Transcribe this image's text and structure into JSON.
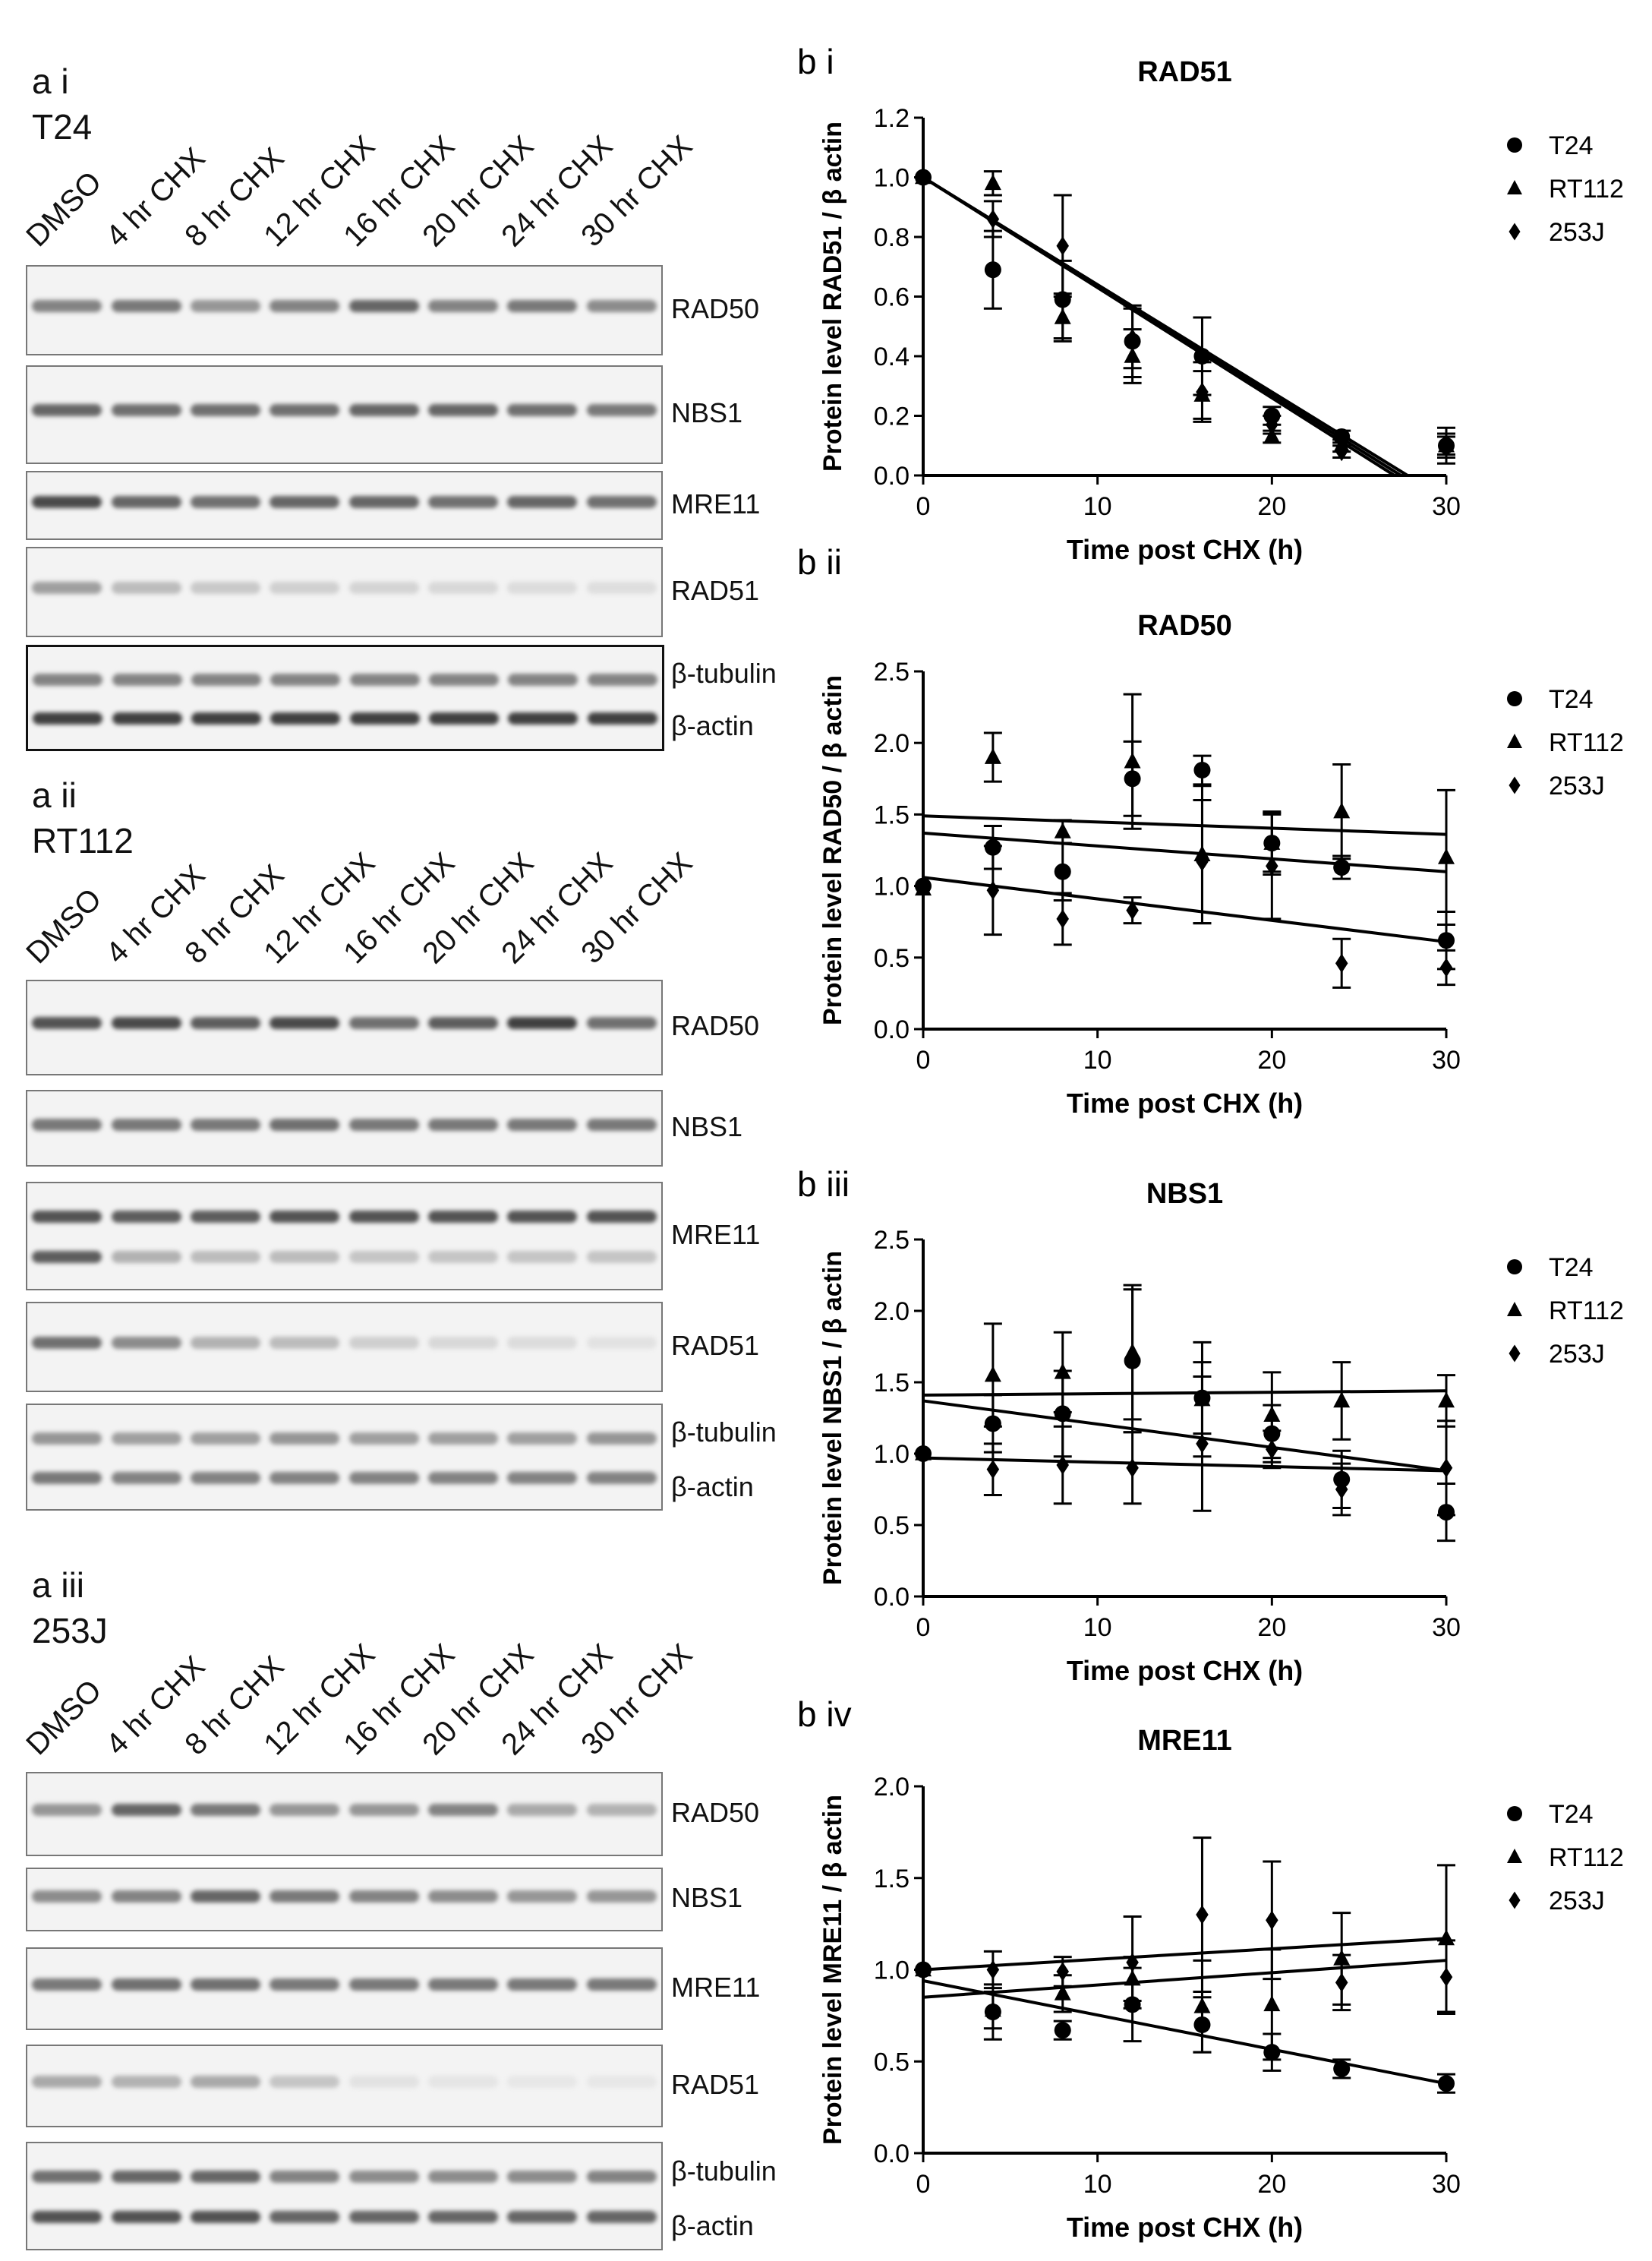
{
  "panels_a": [
    {
      "label": "a i",
      "cell_line": "T24",
      "lanes": [
        "DMSO",
        "4 hr CHX",
        "8 hr CHX",
        "12 hr CHX",
        "16 hr CHX",
        "20 hr CHX",
        "24 hr CHX",
        "30 hr CHX"
      ],
      "blots": [
        {
          "labels": [
            "RAD50"
          ],
          "bands": [
            [
              0.55,
              0.6,
              0.45,
              0.55,
              0.7,
              0.55,
              0.6,
              0.5
            ]
          ]
        },
        {
          "labels": [
            "NBS1"
          ],
          "bands": [
            [
              0.7,
              0.65,
              0.65,
              0.65,
              0.7,
              0.7,
              0.65,
              0.6
            ]
          ]
        },
        {
          "labels": [
            "MRE11"
          ],
          "bands": [
            [
              0.85,
              0.7,
              0.65,
              0.7,
              0.7,
              0.65,
              0.7,
              0.65
            ]
          ]
        },
        {
          "labels": [
            "RAD51"
          ],
          "bands": [
            [
              0.4,
              0.25,
              0.18,
              0.14,
              0.12,
              0.1,
              0.08,
              0.07
            ]
          ]
        },
        {
          "labels": [
            "β-tubulin",
            "β-actin"
          ],
          "bands": [
            [
              0.55,
              0.55,
              0.55,
              0.55,
              0.55,
              0.55,
              0.55,
              0.55
            ],
            [
              0.9,
              0.9,
              0.9,
              0.9,
              0.9,
              0.9,
              0.9,
              0.9
            ]
          ],
          "dark": true
        }
      ]
    },
    {
      "label": "a ii",
      "cell_line": "RT112",
      "lanes": [
        "DMSO",
        "4 hr CHX",
        "8 hr CHX",
        "12 hr CHX",
        "16 hr CHX",
        "20 hr CHX",
        "24 hr CHX",
        "30 hr CHX"
      ],
      "blots": [
        {
          "labels": [
            "RAD50"
          ],
          "bands": [
            [
              0.8,
              0.85,
              0.75,
              0.85,
              0.65,
              0.75,
              0.9,
              0.65
            ]
          ]
        },
        {
          "labels": [
            "NBS1"
          ],
          "bands": [
            [
              0.6,
              0.6,
              0.6,
              0.65,
              0.6,
              0.6,
              0.6,
              0.6
            ]
          ]
        },
        {
          "labels": [
            "MRE11"
          ],
          "bands": [
            [
              0.8,
              0.75,
              0.75,
              0.8,
              0.8,
              0.8,
              0.8,
              0.8
            ],
            [
              0.75,
              0.3,
              0.25,
              0.25,
              0.2,
              0.2,
              0.2,
              0.2
            ]
          ]
        },
        {
          "labels": [
            "RAD51"
          ],
          "bands": [
            [
              0.65,
              0.5,
              0.3,
              0.25,
              0.15,
              0.1,
              0.08,
              0.05
            ]
          ]
        },
        {
          "labels": [
            "β-tubulin",
            "β-actin"
          ],
          "bands": [
            [
              0.45,
              0.4,
              0.4,
              0.45,
              0.4,
              0.4,
              0.4,
              0.45
            ],
            [
              0.6,
              0.55,
              0.55,
              0.55,
              0.55,
              0.55,
              0.55,
              0.55
            ]
          ]
        }
      ]
    },
    {
      "label": "a iii",
      "cell_line": "253J",
      "lanes": [
        "DMSO",
        "4 hr CHX",
        "8 hr CHX",
        "12 hr CHX",
        "16 hr CHX",
        "20 hr CHX",
        "24 hr CHX",
        "30 hr CHX"
      ],
      "blots": [
        {
          "labels": [
            "RAD50"
          ],
          "bands": [
            [
              0.45,
              0.7,
              0.6,
              0.45,
              0.45,
              0.55,
              0.35,
              0.3
            ]
          ]
        },
        {
          "labels": [
            "NBS1"
          ],
          "bands": [
            [
              0.5,
              0.55,
              0.7,
              0.6,
              0.55,
              0.5,
              0.45,
              0.45
            ]
          ]
        },
        {
          "labels": [
            "MRE11"
          ],
          "bands": [
            [
              0.6,
              0.65,
              0.65,
              0.6,
              0.6,
              0.6,
              0.6,
              0.6
            ]
          ]
        },
        {
          "labels": [
            "RAD51"
          ],
          "bands": [
            [
              0.35,
              0.3,
              0.35,
              0.2,
              0.05,
              0.03,
              0.02,
              0.02
            ]
          ]
        },
        {
          "labels": [
            "β-tubulin",
            "β-actin"
          ],
          "bands": [
            [
              0.65,
              0.7,
              0.7,
              0.55,
              0.5,
              0.5,
              0.5,
              0.55
            ],
            [
              0.8,
              0.8,
              0.8,
              0.7,
              0.7,
              0.7,
              0.7,
              0.7
            ]
          ]
        }
      ]
    }
  ],
  "chart_data": [
    {
      "panel": "b i",
      "type": "scatter",
      "title": "RAD51",
      "xlabel": "Time post CHX (h)",
      "ylabel": "Protein level RAD51 / β actin",
      "xlim": [
        0,
        30
      ],
      "xticks": [
        0,
        10,
        20,
        30
      ],
      "ylim": [
        0,
        1.2
      ],
      "yticks": [
        0,
        0.2,
        0.4,
        0.6,
        0.8,
        1.0,
        1.2
      ],
      "ytick_decimals": 1,
      "legend": "right",
      "x": [
        0,
        4,
        8,
        12,
        16,
        20,
        24,
        30
      ],
      "series": [
        {
          "name": "T24",
          "marker": "circle",
          "values": [
            1.0,
            0.69,
            0.59,
            0.45,
            0.4,
            0.2,
            0.13,
            0.1
          ],
          "errors": [
            0,
            0.13,
            0.13,
            0.12,
            0.13,
            0.03,
            0.02,
            0.06
          ],
          "fit": [
            1.0,
            -0.037
          ]
        },
        {
          "name": "RT112",
          "marker": "triangle",
          "values": [
            1.0,
            0.98,
            0.53,
            0.4,
            0.27,
            0.13,
            0.1,
            0.1
          ],
          "errors": [
            0,
            0.04,
            0.08,
            0.09,
            0.08,
            0.02,
            0.02,
            0.03
          ],
          "fit": [
            1.0,
            -0.0365
          ]
        },
        {
          "name": "253J",
          "marker": "diamond",
          "values": [
            1.0,
            0.86,
            0.77,
            0.46,
            0.28,
            0.17,
            0.08,
            0.1
          ],
          "errors": [
            0,
            0.06,
            0.17,
            0.1,
            0.1,
            0.03,
            0.02,
            0.04
          ],
          "fit": [
            1.0,
            -0.036
          ]
        }
      ]
    },
    {
      "panel": "b ii",
      "type": "scatter",
      "title": "RAD50",
      "xlabel": "Time post CHX (h)",
      "ylabel": "Protein level RAD50 / β actin",
      "xlim": [
        0,
        30
      ],
      "xticks": [
        0,
        10,
        20,
        30
      ],
      "ylim": [
        0,
        2.5
      ],
      "yticks": [
        0,
        0.5,
        1.0,
        1.5,
        2.0,
        2.5
      ],
      "ytick_decimals": 1,
      "legend": "right",
      "x": [
        0,
        4,
        8,
        12,
        16,
        20,
        24,
        30
      ],
      "series": [
        {
          "name": "T24",
          "marker": "circle",
          "values": [
            1.0,
            1.27,
            1.1,
            1.75,
            1.81,
            1.3,
            1.13,
            0.62
          ],
          "errors": [
            0,
            0.15,
            0.2,
            0.26,
            0.1,
            0.2,
            0.08,
            0.2
          ],
          "fit": [
            1.37,
            -0.009
          ]
        },
        {
          "name": "RT112",
          "marker": "triangle",
          "values": [
            0.98,
            1.9,
            1.38,
            1.87,
            1.22,
            1.3,
            1.52,
            1.2
          ],
          "errors": [
            0,
            0.17,
            0.08,
            0.47,
            0.48,
            0.22,
            0.33,
            0.47
          ],
          "fit": [
            1.49,
            -0.0043
          ]
        },
        {
          "name": "253J",
          "marker": "diamond",
          "values": [
            1.0,
            0.97,
            0.77,
            0.83,
            1.17,
            1.14,
            0.46,
            0.43
          ],
          "errors": [
            0,
            0.31,
            0.18,
            0.09,
            0.43,
            0.37,
            0.17,
            0.12
          ],
          "fit": [
            1.06,
            -0.015
          ]
        }
      ]
    },
    {
      "panel": "b iii",
      "type": "scatter",
      "title": "NBS1",
      "xlabel": "Time post CHX (h)",
      "ylabel": "Protein level NBS1 / β actin",
      "xlim": [
        0,
        30
      ],
      "xticks": [
        0,
        10,
        20,
        30
      ],
      "ylim": [
        0,
        2.5
      ],
      "yticks": [
        0,
        0.5,
        1.0,
        1.5,
        2.0,
        2.5
      ],
      "ytick_decimals": 1,
      "legend": "right",
      "x": [
        0,
        4,
        8,
        12,
        16,
        20,
        24,
        30
      ],
      "series": [
        {
          "name": "T24",
          "marker": "circle",
          "values": [
            1.0,
            1.21,
            1.28,
            1.65,
            1.39,
            1.14,
            0.82,
            0.59
          ],
          "errors": [
            0,
            0.2,
            0.3,
            0.5,
            0.25,
            0.2,
            0.2,
            0.2
          ],
          "fit": [
            1.37,
            -0.0163
          ]
        },
        {
          "name": "RT112",
          "marker": "triangle",
          "values": [
            1.0,
            1.55,
            1.57,
            1.71,
            1.38,
            1.27,
            1.37,
            1.37
          ],
          "errors": [
            0,
            0.36,
            0.28,
            0.47,
            0.4,
            0.3,
            0.27,
            0.18
          ],
          "fit": [
            1.41,
            0.001
          ]
        },
        {
          "name": "253J",
          "marker": "diamond",
          "values": [
            1.0,
            0.89,
            0.92,
            0.9,
            1.07,
            1.03,
            0.75,
            0.9
          ],
          "errors": [
            0,
            0.18,
            0.27,
            0.25,
            0.47,
            0.13,
            0.18,
            0.33
          ],
          "fit": [
            0.97,
            -0.003
          ]
        }
      ]
    },
    {
      "panel": "b iv",
      "type": "scatter",
      "title": "MRE11",
      "xlabel": "Time post CHX (h)",
      "ylabel": "Protein level MRE11 / β actin",
      "xlim": [
        0,
        30
      ],
      "xticks": [
        0,
        10,
        20,
        30
      ],
      "ylim": [
        0,
        2.0
      ],
      "yticks": [
        0,
        0.5,
        1.0,
        1.5,
        2.0
      ],
      "ytick_decimals": 1,
      "legend": "right",
      "x": [
        0,
        4,
        8,
        12,
        16,
        20,
        24,
        30
      ],
      "series": [
        {
          "name": "T24",
          "marker": "circle",
          "values": [
            1.0,
            0.77,
            0.67,
            0.81,
            0.7,
            0.55,
            0.46,
            0.38
          ],
          "errors": [
            0,
            0.15,
            0.05,
            0.2,
            0.15,
            0.1,
            0.05,
            0.05
          ],
          "fit": [
            0.94,
            -0.0187
          ]
        },
        {
          "name": "RT112",
          "marker": "triangle",
          "values": [
            1.0,
            0.78,
            0.87,
            0.95,
            0.8,
            0.81,
            1.06,
            1.17
          ],
          "errors": [
            0,
            0.1,
            0.1,
            0.12,
            0.25,
            0.3,
            0.25,
            0.4
          ],
          "fit": [
            1.0,
            0.0057
          ]
        },
        {
          "name": "253J",
          "marker": "diamond",
          "values": [
            1.0,
            1.0,
            0.99,
            1.04,
            1.3,
            1.27,
            0.93,
            0.96
          ],
          "errors": [
            0,
            0.1,
            0.08,
            0.25,
            0.42,
            0.32,
            0.15,
            0.2
          ],
          "fit": [
            0.85,
            0.0067
          ]
        }
      ]
    }
  ]
}
